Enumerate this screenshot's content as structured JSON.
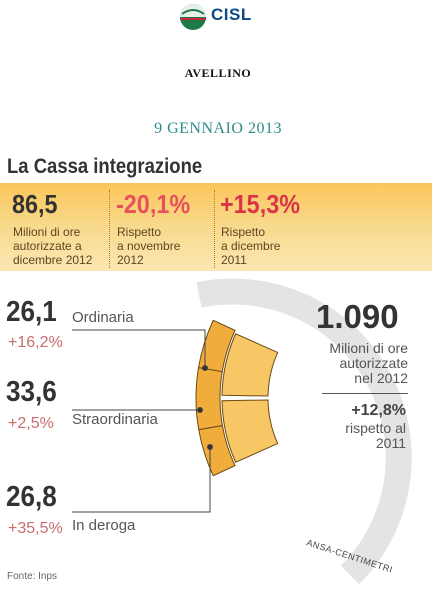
{
  "header": {
    "logo_text": "CISL",
    "city": "AVELLINO",
    "date": "9 GENNAIO 2013"
  },
  "title": "La Cassa integrazione",
  "stats": [
    {
      "value": "86,5",
      "desc": [
        "Milioni di ore",
        "autorizzate a",
        "dicembre 2012"
      ],
      "color": "#333333"
    },
    {
      "value": "-20,1%",
      "desc": [
        "Rispetto",
        "a novembre",
        "2012"
      ],
      "color": "#e8505b"
    },
    {
      "value": "+15,3%",
      "desc": [
        "Rispetto",
        "a dicembre",
        "2011"
      ],
      "color": "#d9344a"
    }
  ],
  "total": {
    "value": "1.090",
    "desc": [
      "Milioni di ore",
      "autorizzate",
      "nel 2012"
    ],
    "change": "+12,8%",
    "change_desc": [
      "rispetto al",
      "2011"
    ]
  },
  "chart_data": {
    "type": "donut-segment",
    "unit": "Milioni di ore",
    "total": 1090,
    "series": [
      {
        "name": "Ordinaria",
        "value": 26.1,
        "label": "26,1",
        "change": "+16,2%"
      },
      {
        "name": "Straordinaria",
        "value": 33.6,
        "label": "33,6",
        "change": "+2,5%"
      },
      {
        "name": "In deroga",
        "value": 26.8,
        "label": "26,8",
        "change": "+35,5%"
      }
    ],
    "colors": {
      "segment": "#f0ad3c",
      "segment_light": "#f7c766",
      "ring": "#e4e4e4"
    }
  },
  "credit": "ANSA-CENTIMETRI",
  "source": "Fonte: Inps"
}
